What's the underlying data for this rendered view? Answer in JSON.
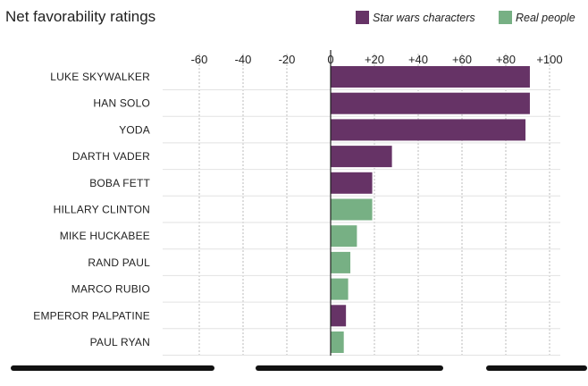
{
  "chart_data": {
    "type": "bar",
    "orientation": "horizontal",
    "title": "Net favorability ratings",
    "xlabel": "",
    "ylabel": "",
    "xlim": [
      -60,
      100
    ],
    "x_ticks": [
      -60,
      -40,
      -20,
      0,
      20,
      40,
      60,
      80,
      100
    ],
    "x_tick_labels": [
      "-60",
      "-40",
      "-20",
      "0",
      "+20",
      "+40",
      "+60",
      "+80",
      "+100"
    ],
    "grid": true,
    "legend_position": "top-right",
    "series": [
      {
        "name": "Star wars characters",
        "color": "#663366"
      },
      {
        "name": "Real people",
        "color": "#77b084"
      }
    ],
    "categories": [
      "LUKE SKYWALKER",
      "HAN SOLO",
      "YODA",
      "DARTH VADER",
      "BOBA FETT",
      "HILLARY CLINTON",
      "MIKE HUCKABEE",
      "RAND PAUL",
      "MARCO RUBIO",
      "EMPEROR PALPATINE",
      "PAUL RYAN"
    ],
    "values": [
      91,
      91,
      89,
      28,
      19,
      19,
      12,
      9,
      8,
      7,
      6
    ],
    "series_index": [
      0,
      0,
      0,
      0,
      0,
      1,
      1,
      1,
      1,
      0,
      1
    ]
  }
}
